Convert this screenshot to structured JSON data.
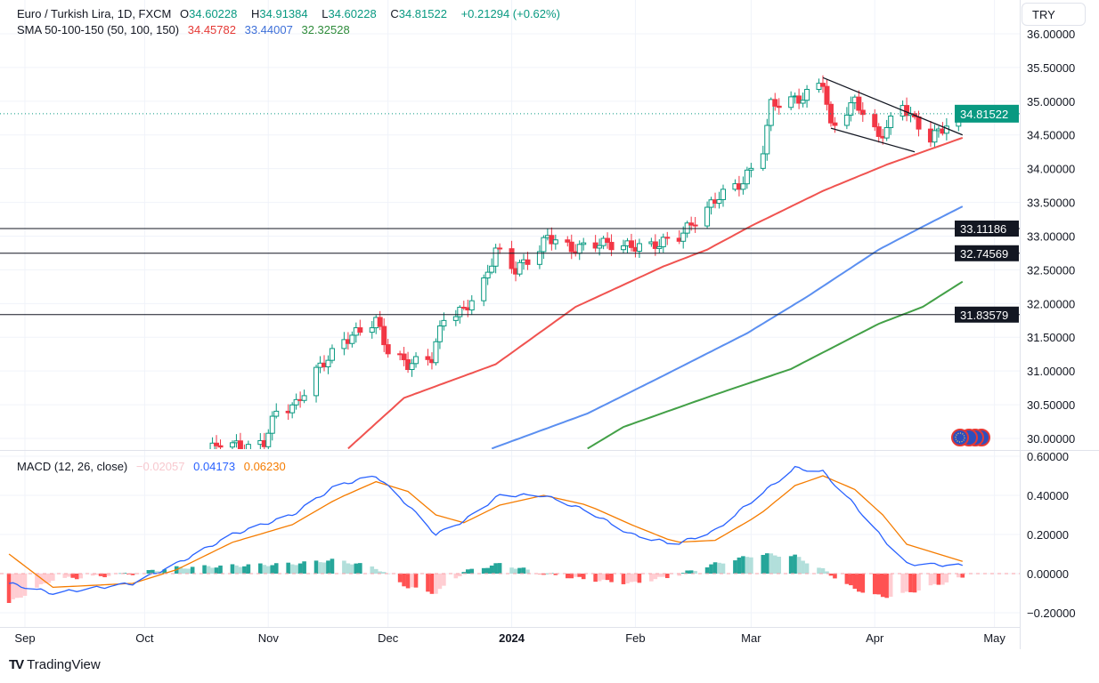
{
  "header": {
    "symbol": "Euro / Turkish Lira, 1D, FXCM",
    "open_label": "O",
    "open": "34.60228",
    "high_label": "H",
    "high": "34.91384",
    "low_label": "L",
    "low": "34.60228",
    "close_label": "C",
    "close": "34.81522",
    "change": "+0.21294 (+0.62%)"
  },
  "sma_legend": {
    "label": "SMA 50-100-150 (50, 100, 150)",
    "sma50": "34.45782",
    "sma100": "33.44007",
    "sma150": "32.32528"
  },
  "macd_legend": {
    "label": "MACD (12, 26, close)",
    "histogram": "−0.02057",
    "macd": "0.04173",
    "signal": "0.06230"
  },
  "currency_button": "TRY",
  "footer": {
    "logo_text": "TradingView"
  },
  "colors": {
    "up": "#089981",
    "down": "#f23645",
    "sma50": "#f05350",
    "sma100": "#5b8ff0",
    "sma150": "#43a047",
    "macd": "#2962ff",
    "signal": "#f57c00",
    "hist_up_strong": "#26a69a",
    "hist_up_weak": "#b2dfdb",
    "hist_down_strong": "#ff5252",
    "hist_down_weak": "#ffcdd2",
    "last_price": "#089981"
  },
  "chart_data": {
    "type": "candlestick",
    "price_axis": {
      "ylim": [
        29.85,
        36.2
      ],
      "ticks": [
        "36.00000",
        "35.50000",
        "35.00000",
        "34.50000",
        "34.00000",
        "33.50000",
        "33.00000",
        "32.50000",
        "32.00000",
        "31.50000",
        "31.00000",
        "30.50000",
        "30.00000"
      ]
    },
    "time_axis": {
      "ticks": [
        [
          "2023-09-01",
          "Sep"
        ],
        [
          "2023-10-01",
          "Oct"
        ],
        [
          "2023-11-01",
          "Nov"
        ],
        [
          "2023-12-01",
          "Dec"
        ],
        [
          "2024-01-01",
          "2024"
        ],
        [
          "2024-02-01",
          "Feb"
        ],
        [
          "2024-03-01",
          "Mar"
        ],
        [
          "2024-04-01",
          "Apr"
        ],
        [
          "2024-05-01",
          "May"
        ]
      ]
    },
    "last_price": "34.81522",
    "close_keypoints": [
      [
        "2023-10-02",
        29.3
      ],
      [
        "2023-10-13",
        29.6
      ],
      [
        "2023-10-20",
        29.95
      ],
      [
        "2023-10-27",
        29.85
      ],
      [
        "2023-10-31",
        29.95
      ],
      [
        "2023-11-03",
        30.4
      ],
      [
        "2023-11-08",
        30.5
      ],
      [
        "2023-11-13",
        31.0
      ],
      [
        "2023-11-20",
        31.45
      ],
      [
        "2023-11-24",
        31.6
      ],
      [
        "2023-11-28",
        31.75
      ],
      [
        "2023-12-01",
        31.3
      ],
      [
        "2023-12-06",
        31.1
      ],
      [
        "2023-12-12",
        31.2
      ],
      [
        "2023-12-15",
        31.8
      ],
      [
        "2023-12-20",
        31.9
      ],
      [
        "2023-12-25",
        32.3
      ],
      [
        "2023-12-28",
        32.8
      ],
      [
        "2024-01-02",
        32.5
      ],
      [
        "2024-01-08",
        32.8
      ],
      [
        "2024-01-10",
        33.0
      ],
      [
        "2024-01-16",
        32.8
      ],
      [
        "2024-01-23",
        32.9
      ],
      [
        "2024-01-30",
        32.85
      ],
      [
        "2024-02-05",
        32.85
      ],
      [
        "2024-02-12",
        33.0
      ],
      [
        "2024-02-19",
        33.4
      ],
      [
        "2024-02-22",
        33.6
      ],
      [
        "2024-02-28",
        33.8
      ],
      [
        "2024-03-04",
        34.3
      ],
      [
        "2024-03-06",
        34.95
      ],
      [
        "2024-03-14",
        35.05
      ],
      [
        "2024-03-19",
        35.3
      ],
      [
        "2024-03-21",
        34.6
      ],
      [
        "2024-03-27",
        35.0
      ],
      [
        "2024-03-29",
        34.85
      ],
      [
        "2024-04-02",
        34.45
      ],
      [
        "2024-04-08",
        34.95
      ],
      [
        "2024-04-11",
        34.7
      ],
      [
        "2024-04-15",
        34.45
      ],
      [
        "2024-04-19",
        34.65
      ],
      [
        "2024-04-23",
        34.81522
      ]
    ],
    "sma": [
      {
        "name": "SMA 50",
        "color_key": "sma50",
        "points": [
          [
            "2023-11-21",
            29.85
          ],
          [
            "2023-12-05",
            30.6
          ],
          [
            "2023-12-28",
            31.1
          ],
          [
            "2024-01-17",
            31.95
          ],
          [
            "2024-02-08",
            32.55
          ],
          [
            "2024-02-19",
            32.8
          ],
          [
            "2024-03-01",
            33.15
          ],
          [
            "2024-03-19",
            33.67
          ],
          [
            "2024-04-04",
            34.06
          ],
          [
            "2024-04-23",
            34.4578
          ]
        ]
      },
      {
        "name": "SMA 100",
        "color_key": "sma100",
        "points": [
          [
            "2023-12-27",
            29.85
          ],
          [
            "2024-01-20",
            30.37
          ],
          [
            "2024-02-07",
            30.9
          ],
          [
            "2024-02-29",
            31.56
          ],
          [
            "2024-03-15",
            32.1
          ],
          [
            "2024-04-02",
            32.8
          ],
          [
            "2024-04-13",
            33.14
          ],
          [
            "2024-04-23",
            33.44
          ]
        ]
      },
      {
        "name": "SMA 150",
        "color_key": "sma150",
        "points": [
          [
            "2024-01-20",
            29.85
          ],
          [
            "2024-01-29",
            30.17
          ],
          [
            "2024-02-20",
            30.63
          ],
          [
            "2024-03-11",
            31.03
          ],
          [
            "2024-04-02",
            31.7
          ],
          [
            "2024-04-13",
            31.95
          ],
          [
            "2024-04-23",
            32.325
          ]
        ]
      }
    ],
    "horizontal_levels": [
      "33.11186",
      "32.74569",
      "31.83579"
    ],
    "trendlines": [
      [
        [
          "2024-03-19",
          35.35
        ],
        [
          "2024-04-23",
          34.5
        ]
      ],
      [
        [
          "2024-03-21",
          34.6
        ],
        [
          "2024-04-11",
          34.25
        ]
      ]
    ],
    "macd_axis": {
      "ylim": [
        -0.27,
        0.63
      ],
      "ticks": [
        [
          "0.60000",
          0.6
        ],
        [
          "0.40000",
          0.4
        ],
        [
          "0.20000",
          0.2
        ],
        [
          "0.00000",
          0
        ],
        [
          "−0.20000",
          -0.2
        ]
      ]
    },
    "macd_keypoints": [
      [
        "2023-08-28",
        -0.05,
        0.1
      ],
      [
        "2023-09-08",
        -0.1,
        -0.07
      ],
      [
        "2023-09-28",
        -0.05,
        -0.05
      ],
      [
        "2023-10-09",
        0.05,
        0.02
      ],
      [
        "2023-10-23",
        0.2,
        0.16
      ],
      [
        "2023-11-07",
        0.3,
        0.25
      ],
      [
        "2023-11-18",
        0.45,
        0.38
      ],
      [
        "2023-11-28",
        0.5,
        0.47
      ],
      [
        "2023-12-06",
        0.35,
        0.42
      ],
      [
        "2023-12-13",
        0.2,
        0.3
      ],
      [
        "2023-12-20",
        0.27,
        0.26
      ],
      [
        "2023-12-29",
        0.4,
        0.35
      ],
      [
        "2024-01-09",
        0.4,
        0.4
      ],
      [
        "2024-01-20",
        0.32,
        0.35
      ],
      [
        "2024-01-31",
        0.2,
        0.25
      ],
      [
        "2024-02-11",
        0.15,
        0.16
      ],
      [
        "2024-02-21",
        0.22,
        0.17
      ],
      [
        "2024-03-03",
        0.4,
        0.3
      ],
      [
        "2024-03-12",
        0.54,
        0.45
      ],
      [
        "2024-03-19",
        0.52,
        0.5
      ],
      [
        "2024-03-27",
        0.35,
        0.43
      ],
      [
        "2024-04-03",
        0.18,
        0.3
      ],
      [
        "2024-04-09",
        0.05,
        0.15
      ],
      [
        "2024-04-23",
        0.04173,
        0.0623
      ]
    ]
  }
}
